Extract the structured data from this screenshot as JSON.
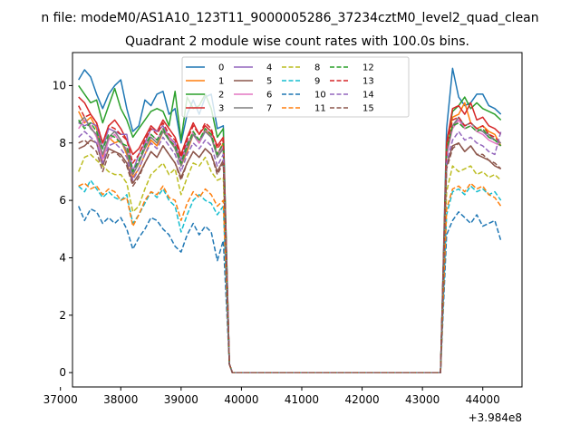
{
  "chart_data": {
    "type": "line",
    "suptitle": "n file: modeM0/AS1A10_123T11_9000005286_37234cztM0_level2_quad_clean",
    "title": "Quadrant 2 module wise count rates with 100.0s bins.",
    "xlabel": "",
    "ylabel": "",
    "x_offset_label": "+3.984e8",
    "xlim": [
      37200,
      44650
    ],
    "ylim": [
      -0.5,
      11.15
    ],
    "x_ticks": [
      37000,
      38000,
      39000,
      40000,
      41000,
      42000,
      43000,
      44000
    ],
    "x_tick_labels": [
      "37000",
      "38000",
      "39000",
      "40000",
      "41000",
      "42000",
      "43000",
      "44000"
    ],
    "y_ticks": [
      0,
      2,
      4,
      6,
      8,
      10
    ],
    "y_tick_labels": [
      "0",
      "2",
      "4",
      "6",
      "8",
      "10"
    ],
    "grid": false,
    "legend": {
      "placement": "top-center",
      "columns": 4
    },
    "x_first_segment": [
      37300,
      37400,
      37500,
      37600,
      37700,
      37800,
      37900,
      38000,
      38100,
      38200,
      38300,
      38400,
      38500,
      38600,
      38700,
      38800,
      38900,
      39000,
      39100,
      39200,
      39300,
      39400,
      39500,
      39600,
      39700,
      39800
    ],
    "x_zero_segment": [
      39850,
      43300
    ],
    "x_last_segment": [
      43300,
      43400,
      43500,
      43600,
      43700,
      43800,
      43900,
      44000,
      44100,
      44200,
      44300
    ],
    "series": [
      {
        "name": "0",
        "color": "#1f77b4",
        "dash": "solid",
        "first": [
          10.2,
          10.55,
          10.3,
          9.7,
          9.2,
          9.7,
          10.0,
          10.2,
          9.2,
          8.4,
          8.6,
          9.5,
          9.3,
          9.7,
          9.8,
          9.0,
          9.2,
          8.0,
          9.0,
          9.5,
          9.0,
          9.6,
          9.7,
          8.5,
          8.6,
          0.3
        ],
        "last": [
          0.0,
          8.5,
          10.6,
          9.6,
          9.3,
          9.4,
          9.7,
          9.7,
          9.3,
          9.2,
          9.0
        ]
      },
      {
        "name": "1",
        "color": "#ff7f0e",
        "dash": "solid",
        "first": [
          9.1,
          8.7,
          8.9,
          8.5,
          7.5,
          8.2,
          8.0,
          8.1,
          7.6,
          6.8,
          7.1,
          7.6,
          8.1,
          7.9,
          8.4,
          8.2,
          7.8,
          7.2,
          7.7,
          8.3,
          8.0,
          8.5,
          8.2,
          7.6,
          8.0,
          0.3
        ],
        "last": [
          0.0,
          8.0,
          8.9,
          9.0,
          9.4,
          8.7,
          8.5,
          8.6,
          8.4,
          8.3,
          7.9
        ]
      },
      {
        "name": "2",
        "color": "#2ca02c",
        "dash": "solid",
        "first": [
          10.0,
          9.7,
          9.4,
          9.5,
          8.7,
          9.3,
          9.9,
          9.2,
          8.8,
          8.2,
          8.5,
          8.8,
          9.1,
          9.2,
          9.1,
          8.6,
          9.8,
          8.1,
          9.6,
          9.2,
          9.3,
          9.7,
          9.2,
          8.2,
          8.5,
          0.3
        ],
        "last": [
          0.0,
          8.0,
          9.1,
          9.3,
          9.6,
          9.2,
          9.4,
          9.2,
          9.1,
          9.0,
          8.8
        ]
      },
      {
        "name": "3",
        "color": "#d62728",
        "dash": "solid",
        "first": [
          9.6,
          9.4,
          9.0,
          8.7,
          8.0,
          8.6,
          8.8,
          8.5,
          8.1,
          7.6,
          7.8,
          8.2,
          8.6,
          8.4,
          8.8,
          8.5,
          8.2,
          7.6,
          8.2,
          8.7,
          8.3,
          8.6,
          8.4,
          7.9,
          8.2,
          0.3
        ],
        "last": [
          0.0,
          8.0,
          9.2,
          9.3,
          9.0,
          9.4,
          8.8,
          8.9,
          8.6,
          8.5,
          8.3
        ]
      },
      {
        "name": "4",
        "color": "#9467bd",
        "dash": "solid",
        "first": [
          8.7,
          8.6,
          8.7,
          8.6,
          7.8,
          8.5,
          8.4,
          8.3,
          8.3,
          7.0,
          7.6,
          8.0,
          8.5,
          8.4,
          8.6,
          8.2,
          8.0,
          7.4,
          8.0,
          8.3,
          8.0,
          8.4,
          8.2,
          7.6,
          7.9,
          0.3
        ],
        "last": [
          0.0,
          7.5,
          8.6,
          8.8,
          8.6,
          8.7,
          8.5,
          8.4,
          8.2,
          8.1,
          8.0
        ]
      },
      {
        "name": "5",
        "color": "#8c564b",
        "dash": "solid",
        "first": [
          7.8,
          7.9,
          8.1,
          8.0,
          7.2,
          7.8,
          7.7,
          7.6,
          7.3,
          6.6,
          6.9,
          7.3,
          7.7,
          7.5,
          7.9,
          7.6,
          7.3,
          6.8,
          7.3,
          7.7,
          7.5,
          7.8,
          7.6,
          7.0,
          7.4,
          0.3
        ],
        "last": [
          0.0,
          7.2,
          7.9,
          8.0,
          7.7,
          7.9,
          7.6,
          7.5,
          7.4,
          7.2,
          7.1
        ]
      },
      {
        "name": "6",
        "color": "#e377c2",
        "dash": "solid",
        "first": [
          8.5,
          8.8,
          8.6,
          8.2,
          7.4,
          8.1,
          8.3,
          8.0,
          7.8,
          6.9,
          7.3,
          7.9,
          8.3,
          8.1,
          8.5,
          8.2,
          7.9,
          7.3,
          7.9,
          8.4,
          8.0,
          8.5,
          8.3,
          7.5,
          7.9,
          0.3
        ],
        "last": [
          0.0,
          7.6,
          8.5,
          8.8,
          8.5,
          8.6,
          8.4,
          8.3,
          8.1,
          8.0,
          7.9
        ]
      },
      {
        "name": "7",
        "color": "#7f7f7f",
        "dash": "solid",
        "first": [
          8.7,
          8.9,
          8.5,
          8.3,
          7.6,
          8.2,
          8.4,
          8.1,
          7.7,
          6.9,
          7.3,
          7.8,
          8.2,
          8.0,
          8.4,
          8.1,
          7.8,
          7.2,
          7.8,
          8.3,
          8.1,
          8.4,
          8.2,
          7.5,
          7.8,
          0.3
        ],
        "last": [
          0.0,
          7.7,
          8.6,
          8.9,
          8.6,
          8.7,
          8.5,
          8.4,
          8.3,
          8.1,
          8.0
        ]
      },
      {
        "name": "8",
        "color": "#bcbd22",
        "dash": "dashed",
        "first": [
          7.0,
          7.5,
          7.6,
          7.4,
          7.2,
          7.0,
          6.9,
          6.9,
          6.6,
          5.6,
          5.8,
          6.4,
          6.9,
          7.1,
          7.3,
          6.9,
          7.1,
          6.2,
          6.8,
          7.3,
          7.2,
          7.5,
          7.0,
          6.7,
          6.8,
          0.3
        ],
        "last": [
          0.0,
          6.3,
          7.2,
          7.0,
          7.1,
          7.2,
          6.9,
          7.0,
          6.8,
          6.9,
          6.7
        ]
      },
      {
        "name": "9",
        "color": "#17becf",
        "dash": "dashed",
        "first": [
          6.5,
          6.3,
          6.7,
          6.4,
          6.1,
          6.3,
          6.1,
          6.0,
          6.2,
          5.2,
          5.5,
          5.9,
          6.3,
          6.1,
          6.4,
          6.0,
          5.8,
          4.9,
          5.5,
          6.0,
          6.2,
          6.0,
          5.9,
          5.5,
          5.8,
          0.3
        ],
        "last": [
          0.0,
          5.5,
          6.3,
          6.4,
          6.2,
          6.5,
          6.3,
          6.4,
          6.2,
          6.3,
          6.0
        ]
      },
      {
        "name": "10",
        "color": "#1f77b4",
        "dash": "dashed",
        "first": [
          5.8,
          5.3,
          5.7,
          5.6,
          5.2,
          5.4,
          5.2,
          5.4,
          5.0,
          4.3,
          4.7,
          5.0,
          5.4,
          5.3,
          5.0,
          4.8,
          4.4,
          4.2,
          4.8,
          5.2,
          4.8,
          5.1,
          4.9,
          3.9,
          4.6,
          0.3
        ],
        "last": [
          0.0,
          4.8,
          5.3,
          5.6,
          5.4,
          5.2,
          5.5,
          5.1,
          5.2,
          5.3,
          4.6
        ]
      },
      {
        "name": "11",
        "color": "#ff7f0e",
        "dash": "dashed",
        "first": [
          6.5,
          6.6,
          6.4,
          6.5,
          6.2,
          6.4,
          6.3,
          6.0,
          6.1,
          5.1,
          5.5,
          6.0,
          6.3,
          6.2,
          6.5,
          6.1,
          6.0,
          5.3,
          5.9,
          6.3,
          6.1,
          6.4,
          6.2,
          5.8,
          6.0,
          0.3
        ],
        "last": [
          0.0,
          5.7,
          6.4,
          6.5,
          6.3,
          6.6,
          6.4,
          6.5,
          6.2,
          6.1,
          5.8
        ]
      },
      {
        "name": "12",
        "color": "#2ca02c",
        "dash": "dashed",
        "first": [
          8.8,
          8.5,
          8.7,
          8.4,
          7.8,
          8.3,
          8.2,
          8.0,
          7.9,
          7.0,
          7.4,
          7.9,
          8.3,
          8.1,
          8.5,
          8.1,
          7.9,
          7.3,
          7.9,
          8.4,
          8.1,
          8.5,
          8.3,
          7.6,
          8.0,
          0.3
        ],
        "last": [
          0.0,
          7.8,
          8.6,
          8.7,
          8.5,
          8.6,
          8.4,
          8.5,
          8.2,
          8.1,
          7.9
        ]
      },
      {
        "name": "13",
        "color": "#d62728",
        "dash": "dashed",
        "first": [
          9.3,
          8.9,
          9.0,
          8.7,
          8.0,
          8.6,
          8.5,
          8.3,
          8.1,
          7.3,
          7.6,
          8.1,
          8.5,
          8.3,
          8.7,
          8.3,
          8.1,
          7.5,
          8.1,
          8.6,
          8.3,
          8.7,
          8.5,
          7.8,
          8.1,
          0.3
        ],
        "last": [
          0.0,
          7.9,
          8.8,
          8.9,
          8.6,
          8.7,
          8.5,
          8.6,
          8.3,
          8.2,
          8.0
        ]
      },
      {
        "name": "14",
        "color": "#9467bd",
        "dash": "dashed",
        "first": [
          8.2,
          8.4,
          8.2,
          8.0,
          7.3,
          7.9,
          8.0,
          7.8,
          7.5,
          6.7,
          7.1,
          7.6,
          8.0,
          7.8,
          8.2,
          7.9,
          7.6,
          7.0,
          7.6,
          8.0,
          7.8,
          8.1,
          7.9,
          7.2,
          7.6,
          0.3
        ],
        "last": [
          0.0,
          7.3,
          8.1,
          8.4,
          8.1,
          8.2,
          8.0,
          7.9,
          7.7,
          7.6,
          8.4
        ]
      },
      {
        "name": "15",
        "color": "#8c564b",
        "dash": "dashed",
        "first": [
          8.0,
          8.1,
          7.9,
          7.7,
          7.0,
          7.6,
          7.7,
          7.5,
          7.2,
          6.5,
          6.8,
          7.3,
          7.7,
          7.5,
          7.9,
          7.6,
          7.3,
          6.7,
          7.3,
          7.7,
          7.5,
          7.8,
          7.6,
          6.9,
          7.3,
          0.3
        ],
        "last": [
          0.0,
          7.1,
          7.8,
          8.0,
          7.7,
          7.9,
          7.6,
          7.6,
          7.4,
          7.3,
          7.1
        ]
      }
    ]
  }
}
